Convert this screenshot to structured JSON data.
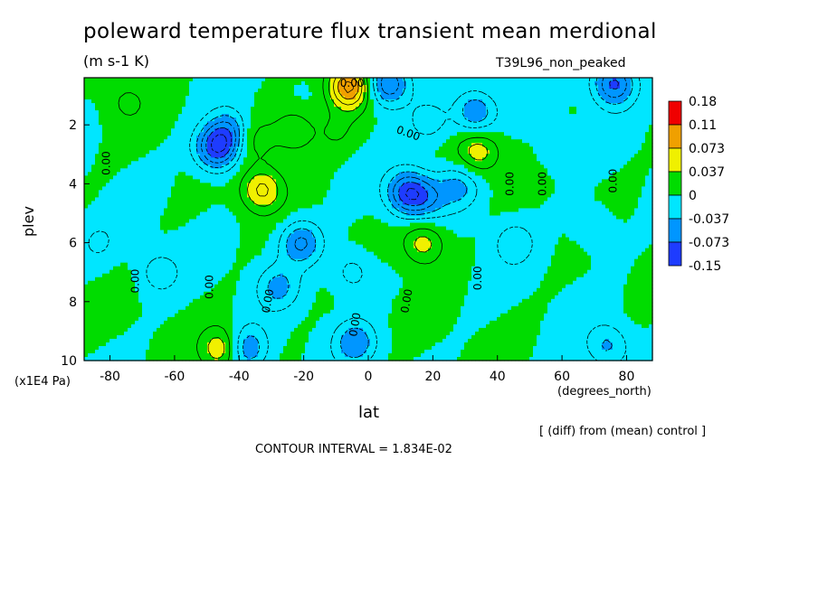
{
  "title": "poleward temperature flux transient mean merdional",
  "units": "(m s-1 K)",
  "run_label": "T39L96_non_peaked",
  "y_axis_label": "plev",
  "y_axis_unit": "(x1E4 Pa)",
  "x_axis_label": "lat",
  "x_axis_unit": "(degrees_north)",
  "note": "[ (diff) from (mean) control ]",
  "contour_interval": "CONTOUR INTERVAL = 1.834E-02",
  "contour_label": "0.00",
  "chart_data": {
    "type": "heatmap",
    "x": [
      -80,
      -60,
      -40,
      -20,
      0,
      20,
      40,
      60,
      80
    ],
    "y": [
      2,
      4,
      6,
      8,
      10
    ],
    "xlim": [
      -88,
      88
    ],
    "ylim": [
      10,
      0.4
    ],
    "x_tick_labels": [
      "-80",
      "-60",
      "-40",
      "-20",
      "0",
      "20",
      "40",
      "60",
      "80"
    ],
    "y_tick_labels": [
      "2",
      "4",
      "6",
      "8",
      "10"
    ],
    "colorbar": {
      "labels": [
        "0.18",
        "0.11",
        "0.073",
        "0.037",
        "0",
        "-0.037",
        "-0.073",
        "-0.15"
      ],
      "colors": [
        "#f00000",
        "#f0a000",
        "#f0f000",
        "#00dc00",
        "#00e6ff",
        "#0096ff",
        "#1e3cff"
      ]
    },
    "features": [
      {
        "lat": -47,
        "plev": 2.8,
        "value": -0.09
      },
      {
        "lat": -43,
        "plev": 2.2,
        "value": -0.05
      },
      {
        "lat": -75,
        "plev": 1.2,
        "value": 0.02
      },
      {
        "lat": -33,
        "plev": 4.2,
        "value": 0.06
      },
      {
        "lat": -35,
        "plev": 2.5,
        "value": 0.03
      },
      {
        "lat": -23,
        "plev": 2.2,
        "value": 0.04
      },
      {
        "lat": -10,
        "plev": 2.2,
        "value": 0.02
      },
      {
        "lat": -6,
        "plev": 0.7,
        "value": 0.1
      },
      {
        "lat": 6,
        "plev": 0.6,
        "value": -0.08
      },
      {
        "lat": 12,
        "plev": 4.3,
        "value": -0.08
      },
      {
        "lat": 18,
        "plev": 4.5,
        "value": -0.04
      },
      {
        "lat": 28,
        "plev": 4.1,
        "value": -0.04
      },
      {
        "lat": 34,
        "plev": 2.9,
        "value": 0.05
      },
      {
        "lat": 33,
        "plev": 1.6,
        "value": -0.06
      },
      {
        "lat": 19,
        "plev": 1.9,
        "value": -0.03
      },
      {
        "lat": 17,
        "plev": 6.0,
        "value": 0.05
      },
      {
        "lat": -21,
        "plev": 6.0,
        "value": -0.06
      },
      {
        "lat": -28,
        "plev": 7.5,
        "value": -0.04
      },
      {
        "lat": -65,
        "plev": 7.0,
        "value": -0.03
      },
      {
        "lat": -5,
        "plev": 7.0,
        "value": -0.03
      },
      {
        "lat": 45,
        "plev": 6.0,
        "value": -0.03
      },
      {
        "lat": 70,
        "plev": 5.5,
        "value": -0.02
      },
      {
        "lat": 76,
        "plev": 0.6,
        "value": -0.08
      },
      {
        "lat": -45,
        "plev": 9.6,
        "value": 0.06
      },
      {
        "lat": -38,
        "plev": 9.6,
        "value": -0.06
      },
      {
        "lat": -4,
        "plev": 9.4,
        "value": -0.05
      },
      {
        "lat": 74,
        "plev": 9.5,
        "value": -0.04
      },
      {
        "lat": -84,
        "plev": 6.0,
        "value": -0.02
      },
      {
        "lat": 58,
        "plev": 2.8,
        "value": -0.015
      }
    ]
  }
}
